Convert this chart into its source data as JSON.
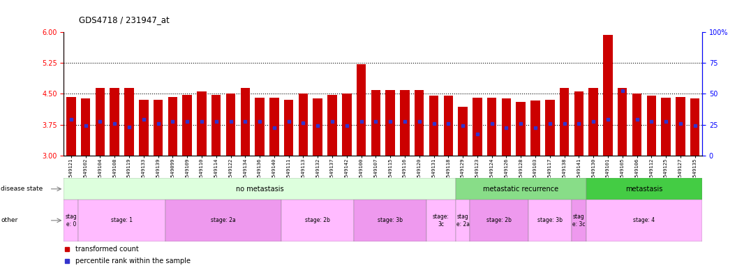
{
  "title": "GDS4718 / 231947_at",
  "samples": [
    "GSM549121",
    "GSM549102",
    "GSM549104",
    "GSM549108",
    "GSM549119",
    "GSM549133",
    "GSM549139",
    "GSM549099",
    "GSM549109",
    "GSM549110",
    "GSM549114",
    "GSM549122",
    "GSM549134",
    "GSM549136",
    "GSM549140",
    "GSM549111",
    "GSM549113",
    "GSM549132",
    "GSM549137",
    "GSM549142",
    "GSM549100",
    "GSM549107",
    "GSM549115",
    "GSM549116",
    "GSM549120",
    "GSM549131",
    "GSM549118",
    "GSM549129",
    "GSM549123",
    "GSM549124",
    "GSM549126",
    "GSM549128",
    "GSM549103",
    "GSM549117",
    "GSM549138",
    "GSM549141",
    "GSM549130",
    "GSM549101",
    "GSM549105",
    "GSM549106",
    "GSM549112",
    "GSM549125",
    "GSM549127",
    "GSM549135"
  ],
  "bar_heights": [
    4.42,
    4.38,
    4.65,
    4.65,
    4.65,
    4.35,
    4.35,
    4.42,
    4.47,
    4.55,
    4.48,
    4.5,
    4.65,
    4.4,
    4.4,
    4.35,
    4.5,
    4.38,
    4.47,
    4.5,
    5.22,
    4.6,
    4.6,
    4.6,
    4.6,
    4.45,
    4.45,
    4.18,
    4.4,
    4.4,
    4.38,
    4.3,
    4.33,
    4.35,
    4.65,
    4.55,
    4.65,
    5.93,
    4.65,
    4.5,
    4.45,
    4.4,
    4.42,
    4.38
  ],
  "percentile_values": [
    3.87,
    3.72,
    3.82,
    3.78,
    3.7,
    3.87,
    3.77,
    3.82,
    3.83,
    3.83,
    3.83,
    3.83,
    3.83,
    3.83,
    3.67,
    3.82,
    3.8,
    3.72,
    3.82,
    3.72,
    3.82,
    3.82,
    3.82,
    3.82,
    3.82,
    3.77,
    3.77,
    3.72,
    3.52,
    3.77,
    3.67,
    3.77,
    3.67,
    3.77,
    3.77,
    3.77,
    3.82,
    3.87,
    4.57,
    3.87,
    3.83,
    3.82,
    3.77,
    3.72
  ],
  "ylim_left": [
    3,
    6
  ],
  "ylim_right": [
    0,
    100
  ],
  "yticks_left": [
    3,
    3.75,
    4.5,
    5.25,
    6
  ],
  "yticks_right": [
    0,
    25,
    50,
    75,
    100
  ],
  "hlines": [
    3.75,
    4.5,
    5.25
  ],
  "bar_color": "#cc0000",
  "marker_color": "#3333cc",
  "disease_state_groups": [
    {
      "label": "no metastasis",
      "start": 0,
      "end": 27,
      "color": "#ddffdd"
    },
    {
      "label": "metastatic recurrence",
      "start": 27,
      "end": 36,
      "color": "#88dd88"
    },
    {
      "label": "metastasis",
      "start": 36,
      "end": 44,
      "color": "#44cc44"
    }
  ],
  "stage_groups": [
    {
      "label": "stag\ne: 0",
      "start": 0,
      "end": 1,
      "color": "#ffbbff"
    },
    {
      "label": "stage: 1",
      "start": 1,
      "end": 7,
      "color": "#ffbbff"
    },
    {
      "label": "stage: 2a",
      "start": 7,
      "end": 15,
      "color": "#ee99ee"
    },
    {
      "label": "stage: 2b",
      "start": 15,
      "end": 20,
      "color": "#ffbbff"
    },
    {
      "label": "stage: 3b",
      "start": 20,
      "end": 25,
      "color": "#ee99ee"
    },
    {
      "label": "stage:\n3c",
      "start": 25,
      "end": 27,
      "color": "#ffbbff"
    },
    {
      "label": "stag\ne: 2a",
      "start": 27,
      "end": 28,
      "color": "#ffbbff"
    },
    {
      "label": "stage: 2b",
      "start": 28,
      "end": 32,
      "color": "#ee99ee"
    },
    {
      "label": "stage: 3b",
      "start": 32,
      "end": 35,
      "color": "#ffbbff"
    },
    {
      "label": "stag\ne: 3c",
      "start": 35,
      "end": 36,
      "color": "#ee99ee"
    },
    {
      "label": "stage: 4",
      "start": 36,
      "end": 44,
      "color": "#ffbbff"
    }
  ],
  "legend_items": [
    {
      "label": "transformed count",
      "color": "#cc0000"
    },
    {
      "label": "percentile rank within the sample",
      "color": "#3333cc"
    }
  ],
  "base_value": 3.0,
  "background_color": "#ffffff",
  "bar_width": 0.65
}
